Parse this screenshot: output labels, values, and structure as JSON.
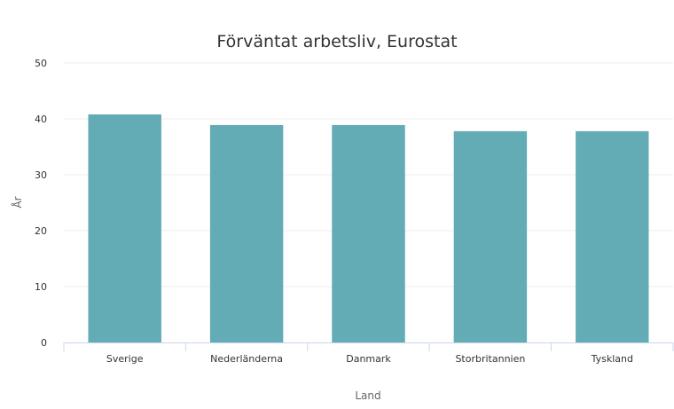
{
  "chart_data": {
    "type": "bar",
    "title": "Förväntat arbetsliv, Eurostat",
    "xlabel": "Land",
    "ylabel": "År",
    "categories": [
      "Sverige",
      "Nederländerna",
      "Danmark",
      "Storbritannien",
      "Tyskland"
    ],
    "values": [
      40.8,
      38.9,
      38.9,
      37.8,
      37.8
    ],
    "ylim": [
      0,
      50
    ],
    "yticks": [
      0,
      10,
      20,
      30,
      40,
      50
    ],
    "grid": true,
    "legend": false,
    "colors": {
      "bar": "#63acb5"
    }
  }
}
